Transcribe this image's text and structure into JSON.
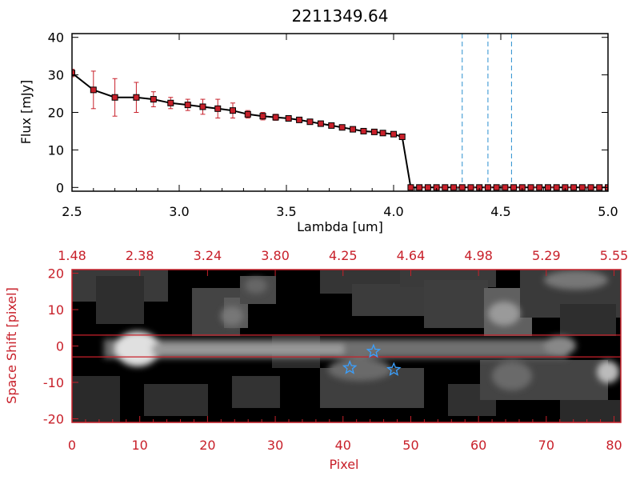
{
  "colors": {
    "accent": "#c8202a",
    "spectrum_line": "#000000",
    "error_bars": "#c8202a",
    "markers": "#c8202a",
    "dashed_lines": "#2a8fd0",
    "stars": "#3aa0ff",
    "image_background": "#000000"
  },
  "chart_data": [
    {
      "type": "line",
      "title": "2211349.64",
      "xlabel": "Lambda [um]",
      "ylabel": "Flux [mJy]",
      "xlim": [
        2.5,
        5.0
      ],
      "ylim": [
        -1,
        41
      ],
      "xticks": [
        "2.5",
        "3.0",
        "3.5",
        "4.0",
        "4.5",
        "5.0"
      ],
      "yticks": [
        "0",
        "10",
        "20",
        "30",
        "40"
      ],
      "series": [
        {
          "name": "flux",
          "x": [
            2.5,
            2.6,
            2.7,
            2.8,
            2.88,
            2.96,
            3.04,
            3.11,
            3.18,
            3.25,
            3.32,
            3.39,
            3.45,
            3.51,
            3.56,
            3.61,
            3.66,
            3.71,
            3.76,
            3.81,
            3.86,
            3.91,
            3.95,
            4.0,
            4.04,
            4.08,
            4.12,
            4.16,
            4.2,
            4.24,
            4.28,
            4.32,
            4.36,
            4.4,
            4.44,
            4.48,
            4.52,
            4.56,
            4.6,
            4.64,
            4.68,
            4.72,
            4.76,
            4.8,
            4.84,
            4.88,
            4.92,
            4.96,
            5.0
          ],
          "y": [
            30.5,
            26,
            24,
            24,
            23.5,
            22.5,
            22,
            21.5,
            21,
            20.5,
            19.5,
            19,
            18.7,
            18.4,
            18,
            17.5,
            17,
            16.5,
            16,
            15.5,
            15,
            14.8,
            14.5,
            14.2,
            13.5,
            0,
            0,
            0,
            0,
            0,
            0,
            0,
            0,
            0,
            0,
            0,
            0,
            0,
            0,
            0,
            0,
            0,
            0,
            0,
            0,
            0,
            0,
            0,
            0
          ],
          "yerr": [
            1,
            5,
            5,
            4,
            2,
            1.5,
            1.5,
            2,
            2.5,
            2,
            1,
            1,
            0.8,
            0.6,
            0.5,
            0.5,
            0.5,
            0.5,
            0.5,
            0.5,
            0.5,
            0.5,
            0.5,
            0.5,
            0.5,
            0,
            0,
            0,
            0,
            0,
            0,
            0,
            0,
            0,
            0,
            0,
            0,
            0,
            0,
            0,
            0,
            0,
            0,
            0,
            0,
            0,
            0,
            0,
            0
          ]
        }
      ],
      "vertical_lines": [
        4.32,
        4.44,
        4.55
      ]
    },
    {
      "type": "heatmap",
      "xlabel": "Pixel",
      "ylabel": "Space Shift [pixel]",
      "xlim": [
        0,
        81
      ],
      "ylim": [
        -21,
        21
      ],
      "xticks": [
        "0",
        "10",
        "20",
        "30",
        "40",
        "50",
        "60",
        "70",
        "80"
      ],
      "yticks": [
        "20",
        "10",
        "0",
        "-10",
        "-20"
      ],
      "top_axis_ticks": [
        "1.48",
        "2.38",
        "3.24",
        "3.80",
        "4.25",
        "4.64",
        "4.98",
        "5.29",
        "5.55"
      ],
      "horizontal_lines": [
        3,
        -3
      ],
      "stars": [
        {
          "x": 44.5,
          "y": -1.5
        },
        {
          "x": 41,
          "y": -6
        },
        {
          "x": 47.5,
          "y": -6.5
        }
      ]
    }
  ]
}
